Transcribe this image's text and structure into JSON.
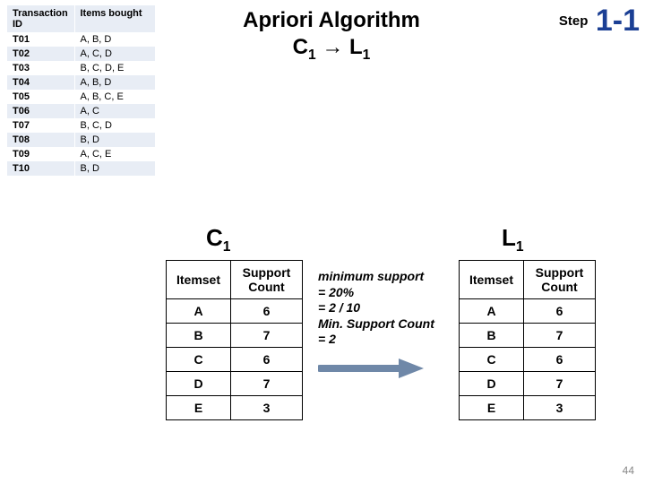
{
  "title_line1": "Apriori Algorithm",
  "title_line2_a": "C",
  "title_line2_b": "L",
  "title_sub": "1",
  "title_arrow": "→",
  "step_label": "Step",
  "step_num": "1-1",
  "trans_headers": {
    "h1": "Transaction ID",
    "h2": "Items bought"
  },
  "trans_rows": [
    {
      "id": "T01",
      "items": "A, B, D"
    },
    {
      "id": "T02",
      "items": "A, C, D"
    },
    {
      "id": "T03",
      "items": "B, C, D, E"
    },
    {
      "id": "T04",
      "items": "A, B, D"
    },
    {
      "id": "T05",
      "items": "A, B, C, E"
    },
    {
      "id": "T06",
      "items": "A, C"
    },
    {
      "id": "T07",
      "items": "B, C, D"
    },
    {
      "id": "T08",
      "items": "B, D"
    },
    {
      "id": "T09",
      "items": "A, C, E"
    },
    {
      "id": "T10",
      "items": "B, D"
    }
  ],
  "c1_label": "C",
  "l1_label": "L",
  "table_sub": "1",
  "count_headers": {
    "h1": "Itemset",
    "h2": "Support Count"
  },
  "c1_rows": [
    {
      "item": "A",
      "count": "6"
    },
    {
      "item": "B",
      "count": "7"
    },
    {
      "item": "C",
      "count": "6"
    },
    {
      "item": "D",
      "count": "7"
    },
    {
      "item": "E",
      "count": "3"
    }
  ],
  "l1_rows": [
    {
      "item": "A",
      "count": "6"
    },
    {
      "item": "B",
      "count": "7"
    },
    {
      "item": "C",
      "count": "6"
    },
    {
      "item": "D",
      "count": "7"
    },
    {
      "item": "E",
      "count": "3"
    }
  ],
  "note_l1": "minimum support = 20%",
  "note_l2": "= 2 / 10",
  "note_l3": "Min. Support Count = 2",
  "page_num": "44",
  "colors": {
    "step_blue": "#1b3f94",
    "arrow_blue": "#6f88a8",
    "trans_band": "#e8edf5"
  }
}
